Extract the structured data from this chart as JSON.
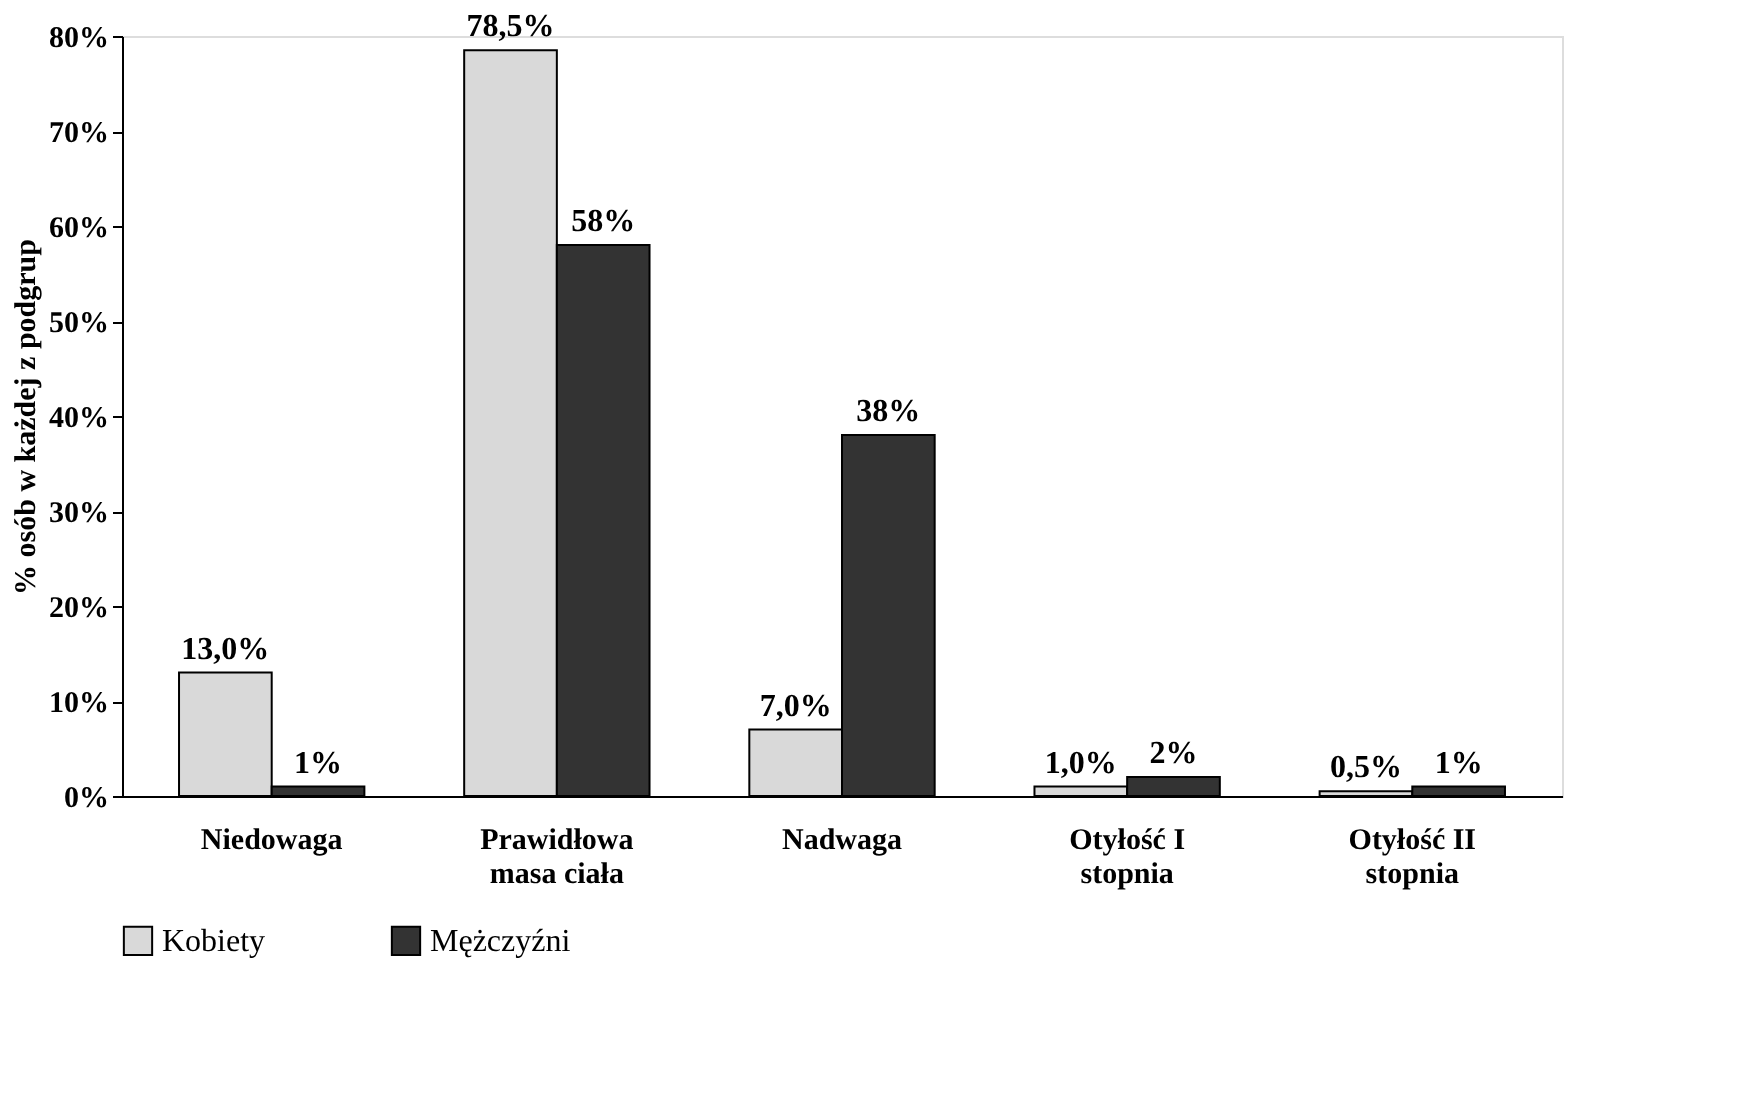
{
  "chart_data": {
    "type": "bar",
    "ylabel": "% osób w każdej z podgrup",
    "categories": [
      "Niedowaga",
      "Prawidłowa\nmasa ciała",
      "Nadwaga",
      "Otyłość I\nstopnia",
      "Otyłość II\nstopnia"
    ],
    "series": [
      {
        "name": "Kobiety",
        "color": "#d9d9d9",
        "values": [
          13.0,
          78.5,
          7.0,
          1.0,
          0.5
        ],
        "value_labels": [
          "13,0%",
          "78,5%",
          "7,0%",
          "1,0%",
          "0,5%"
        ]
      },
      {
        "name": "Mężczyźni",
        "color": "#333333",
        "values": [
          1,
          58,
          38,
          2,
          1
        ],
        "value_labels": [
          "1%",
          "58%",
          "38%",
          "2%",
          "1%"
        ]
      }
    ],
    "ylim": [
      0,
      80
    ],
    "yticks": [
      {
        "value": 0,
        "label": "0%"
      },
      {
        "value": 10,
        "label": "10%"
      },
      {
        "value": 20,
        "label": "20%"
      },
      {
        "value": 30,
        "label": "30%"
      },
      {
        "value": 40,
        "label": "40%"
      },
      {
        "value": 50,
        "label": "50%"
      },
      {
        "value": 60,
        "label": "60%"
      },
      {
        "value": 70,
        "label": "70%"
      },
      {
        "value": 80,
        "label": "80%"
      }
    ],
    "grid": false,
    "legend": "bottom"
  }
}
